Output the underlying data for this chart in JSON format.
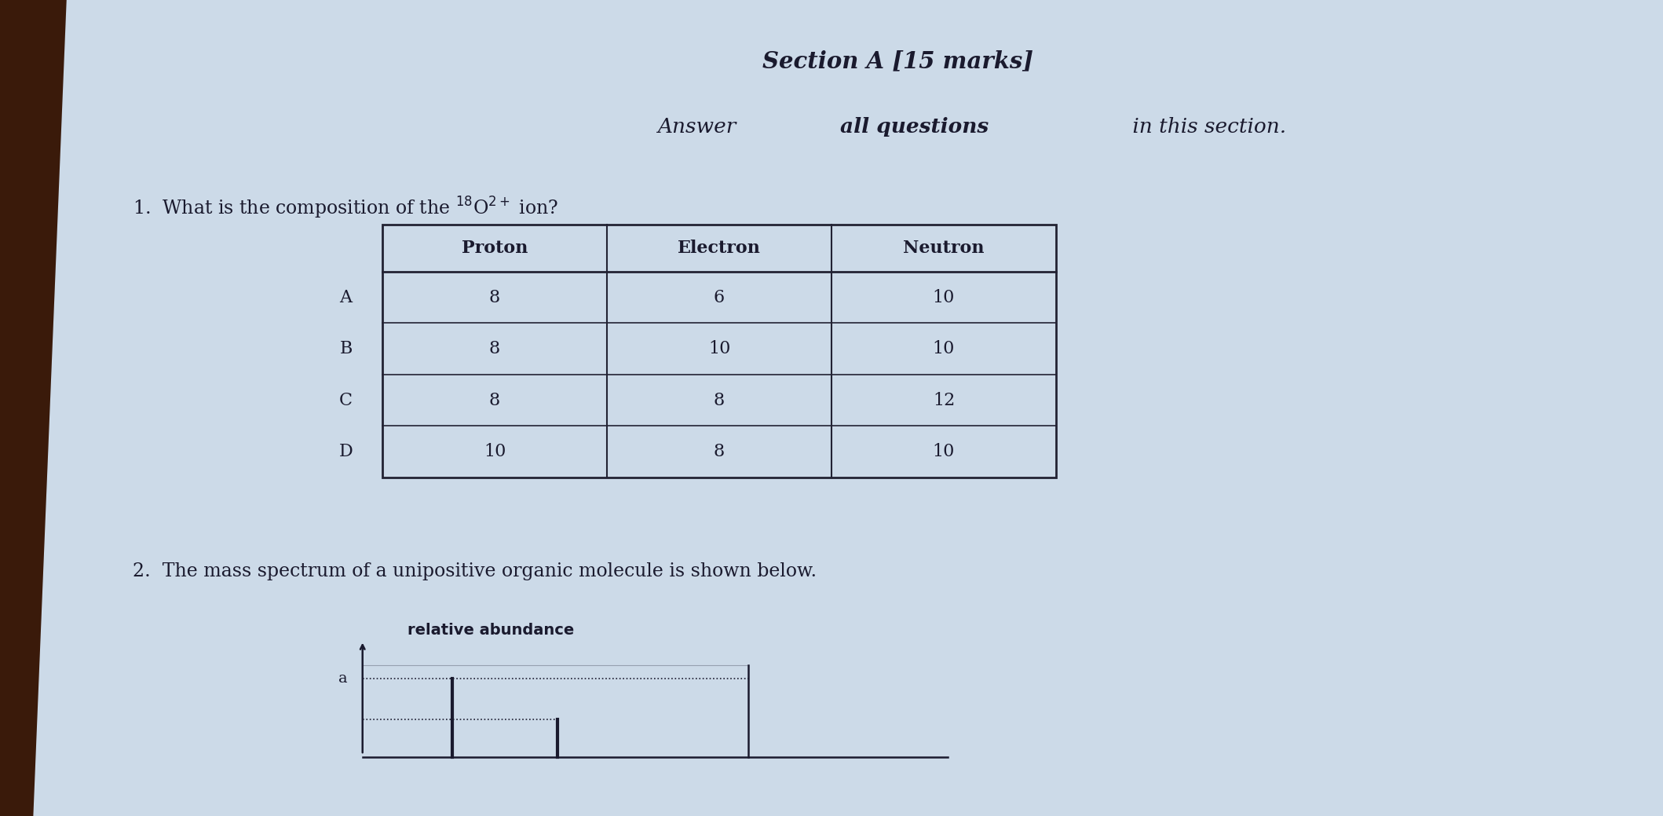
{
  "bg_color": "#b8c8d8",
  "paper_color": "#d8e4ee",
  "text_color": "#1a1a2e",
  "title": "Section A [15 marks]",
  "subtitle_part1": "Answer ",
  "subtitle_part2": "all questions",
  "subtitle_part3": " in this section.",
  "q1_text": "1.  What is the composition of the $^{18}$O$^{2+}$ ion?",
  "table_headers": [
    "Proton",
    "Electron",
    "Neutron"
  ],
  "table_rows": [
    {
      "label": "A",
      "proton": "8",
      "electron": "6",
      "neutron": "10"
    },
    {
      "label": "B",
      "proton": "8",
      "electron": "10",
      "neutron": "10"
    },
    {
      "label": "C",
      "proton": "8",
      "electron": "8",
      "neutron": "12"
    },
    {
      "label": "D",
      "proton": "10",
      "electron": "8",
      "neutron": "10"
    }
  ],
  "q2_text": "2.  The mass spectrum of a unipositive organic molecule is shown below.",
  "q2_ylabel": "relative abundance",
  "q2_axis_label": "a",
  "figwidth": 21.18,
  "figheight": 10.39,
  "dpi": 100
}
